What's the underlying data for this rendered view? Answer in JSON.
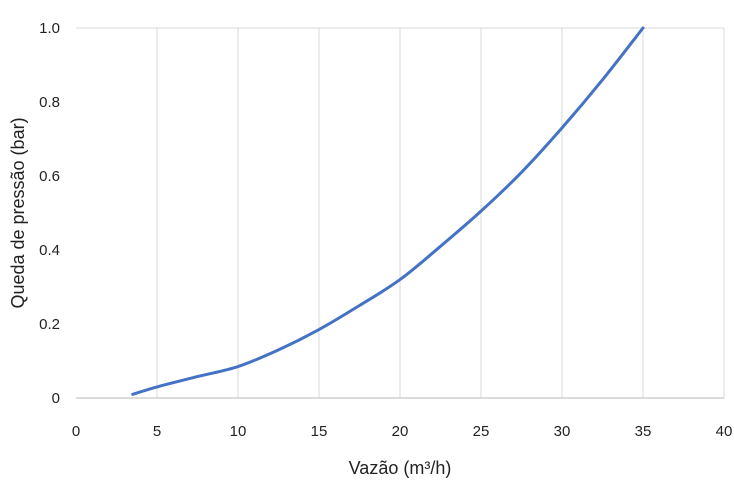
{
  "chart_data": {
    "type": "line",
    "title": "",
    "xlabel": "Vazão (m³/h)",
    "ylabel": "Queda de pressão (bar)",
    "xlim": [
      0,
      40
    ],
    "ylim": [
      0,
      1.0
    ],
    "xticks": [
      0,
      5,
      10,
      15,
      20,
      25,
      30,
      35,
      40
    ],
    "xtick_labels": [
      "0",
      "5",
      "10",
      "15",
      "20",
      "25",
      "30",
      "35",
      "40"
    ],
    "yticks": [
      0,
      0.2,
      0.4,
      0.6,
      0.8,
      1.0
    ],
    "ytick_labels": [
      "0",
      "0.2",
      "0.4",
      "0.6",
      "0.8",
      "1.0"
    ],
    "grid": "vertical",
    "legend": "none",
    "series": [
      {
        "color": "#4472c4",
        "x": [
          3.5,
          5,
          7.5,
          10,
          12.5,
          15,
          17.5,
          20,
          22.5,
          25,
          27.5,
          30,
          32.5,
          35
        ],
        "y": [
          0.01,
          0.03,
          0.058,
          0.085,
          0.13,
          0.185,
          0.25,
          0.32,
          0.41,
          0.505,
          0.61,
          0.73,
          0.86,
          1.0
        ]
      }
    ]
  }
}
